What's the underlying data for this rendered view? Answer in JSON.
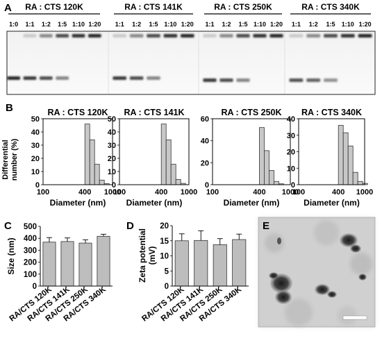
{
  "panel_a": {
    "letter": "A",
    "groups": [
      {
        "title": "RA : CTS 120K",
        "lanes": [
          "1:0",
          "1:1",
          "1:2",
          "1:5",
          "1:10",
          "1:20"
        ]
      },
      {
        "title": "RA : CTS 141K",
        "lanes": [
          "1:1",
          "1:2",
          "1:5",
          "1:10",
          "1:20"
        ]
      },
      {
        "title": "RA : CTS 250K",
        "lanes": [
          "1:1",
          "1:2",
          "1:5",
          "1:10",
          "1:20"
        ]
      },
      {
        "title": "RA : CTS 340K",
        "lanes": [
          "1:1",
          "1:2",
          "1:5",
          "1:10",
          "1:20"
        ]
      }
    ]
  },
  "panel_b": {
    "letter": "B",
    "ylabel_line1": "Differential",
    "ylabel_line2": "number (%)"
  },
  "panel_c": {
    "letter": "C"
  },
  "panel_d": {
    "letter": "D"
  },
  "panel_e": {
    "letter": "E"
  },
  "chart_data": [
    {
      "type": "bar",
      "title": "RA : CTS 120K",
      "xlabel": "Diameter (nm)",
      "ylabel": "Differential number (%)",
      "x_scale": "log",
      "xlim": [
        100,
        1000
      ],
      "ylim": [
        0,
        50
      ],
      "x_ticks": [
        "100",
        "400",
        "1000"
      ],
      "y_ticks": [
        "0",
        "10",
        "20",
        "30",
        "40",
        "50"
      ],
      "x": [
        400,
        460,
        530,
        610,
        700
      ],
      "values": [
        46,
        34,
        15.5,
        3.5,
        0.8
      ]
    },
    {
      "type": "bar",
      "title": "RA : CTS 141K",
      "xlabel": "Diameter (nm)",
      "ylabel": "Differential number (%)",
      "x_scale": "log",
      "xlim": [
        100,
        1000
      ],
      "ylim": [
        0,
        50
      ],
      "x_ticks": [
        "100",
        "400",
        "1000"
      ],
      "y_ticks": [
        "0",
        "10",
        "20",
        "30",
        "40",
        "50"
      ],
      "x": [
        400,
        460,
        530,
        610,
        700
      ],
      "values": [
        46,
        34,
        15.5,
        4,
        1
      ]
    },
    {
      "type": "bar",
      "title": "RA : CTS 250K",
      "xlabel": "Diameter (nm)",
      "ylabel": "Differential number (%)",
      "x_scale": "log",
      "xlim": [
        100,
        1000
      ],
      "ylim": [
        0,
        60
      ],
      "x_ticks": [
        "100",
        "400",
        "1000"
      ],
      "y_ticks": [
        "0",
        "20",
        "40",
        "60"
      ],
      "x": [
        400,
        460,
        530,
        610,
        700
      ],
      "values": [
        52,
        31,
        13,
        3,
        0.8
      ]
    },
    {
      "type": "bar",
      "title": "RA : CTS 340K",
      "xlabel": "Diameter (nm)",
      "ylabel": "Differential number (%)",
      "x_scale": "log",
      "xlim": [
        100,
        1000
      ],
      "ylim": [
        0,
        40
      ],
      "x_ticks": [
        "100",
        "400",
        "1000"
      ],
      "y_ticks": [
        "0",
        "10",
        "20",
        "30",
        "40"
      ],
      "x": [
        400,
        460,
        530,
        610,
        700,
        800
      ],
      "values": [
        36,
        31.5,
        23.5,
        7.5,
        2,
        0.8
      ]
    },
    {
      "type": "bar",
      "ylabel": "Size (nm)",
      "ylim": [
        0,
        500
      ],
      "y_ticks": [
        "0",
        "100",
        "200",
        "300",
        "400",
        "500"
      ],
      "categories": [
        "RA/CTS 120K",
        "RA/CTS 141K",
        "RA/CTS 250K",
        "RA/CTS 340K"
      ],
      "values": [
        368,
        373,
        360,
        417
      ],
      "errors": [
        38,
        30,
        28,
        17
      ]
    },
    {
      "type": "bar",
      "ylabel": "Zeta potential (mV)",
      "ylim": [
        0,
        20
      ],
      "y_ticks": [
        "0",
        "5",
        "10",
        "15",
        "20"
      ],
      "categories": [
        "RA/CTS 120K",
        "RA/CTS 141K",
        "RA/CTS 250K",
        "RA/CTS 340K"
      ],
      "values": [
        15,
        15.1,
        13.7,
        15.4
      ],
      "errors": [
        2.3,
        3.2,
        2,
        1.8
      ]
    }
  ]
}
